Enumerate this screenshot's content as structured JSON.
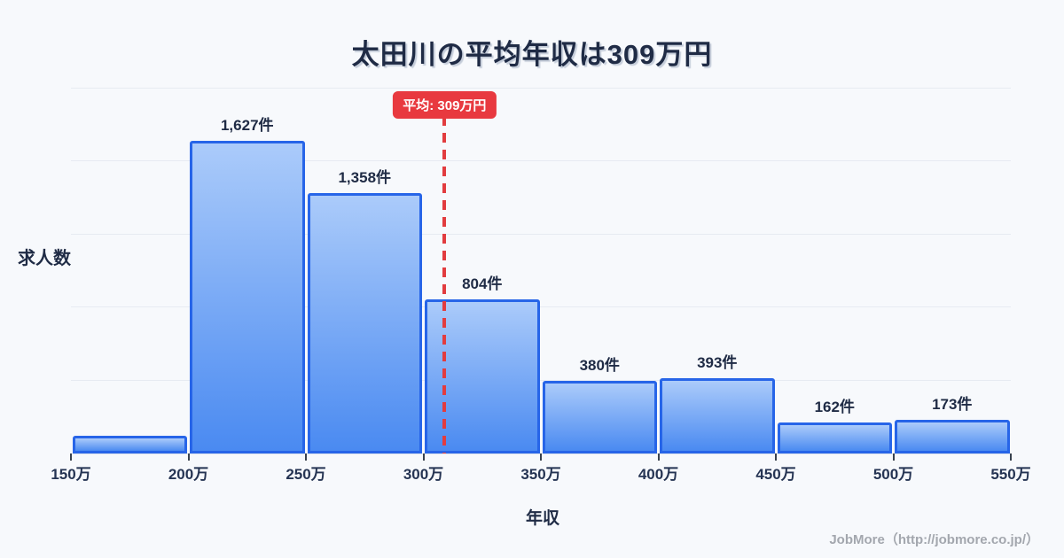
{
  "page": {
    "title": "太田川の平均年収は309万円"
  },
  "chart_data": {
    "type": "bar",
    "title": "太田川の平均年収は309万円",
    "xlabel": "年収",
    "ylabel": "求人数",
    "x_tick_labels": [
      "150万",
      "200万",
      "250万",
      "300万",
      "350万",
      "400万",
      "450万",
      "500万",
      "550万"
    ],
    "bin_edges": [
      150,
      200,
      250,
      300,
      350,
      400,
      450,
      500,
      550
    ],
    "categories": [
      "150万-200万",
      "200万-250万",
      "250万-300万",
      "300万-350万",
      "350万-400万",
      "400万-450万",
      "450万-500万",
      "500万-550万"
    ],
    "values": [
      90,
      1627,
      1358,
      804,
      380,
      393,
      162,
      173
    ],
    "bar_labels": [
      "",
      "1,627件",
      "1,358件",
      "804件",
      "380件",
      "393件",
      "162件",
      "173件"
    ],
    "mean_line": {
      "value": 309,
      "label": "平均: 309万円",
      "color": "#e8393f"
    },
    "xlim": [
      150,
      550
    ],
    "ylim": [
      0,
      1900
    ],
    "gridline_count": 5,
    "grid": true,
    "legend": false,
    "colors": {
      "background": "#f7f9fc",
      "bar_fill_top": "#abcbfa",
      "bar_fill_bottom": "#4a8af1",
      "bar_border": "#2765e8",
      "grid": "#e7ebf2",
      "axis_text": "#253453",
      "title_text": "#1f2b45",
      "mean_red": "#e8393f"
    }
  },
  "footer": {
    "credit": "JobMore（http://jobmore.co.jp/）"
  }
}
